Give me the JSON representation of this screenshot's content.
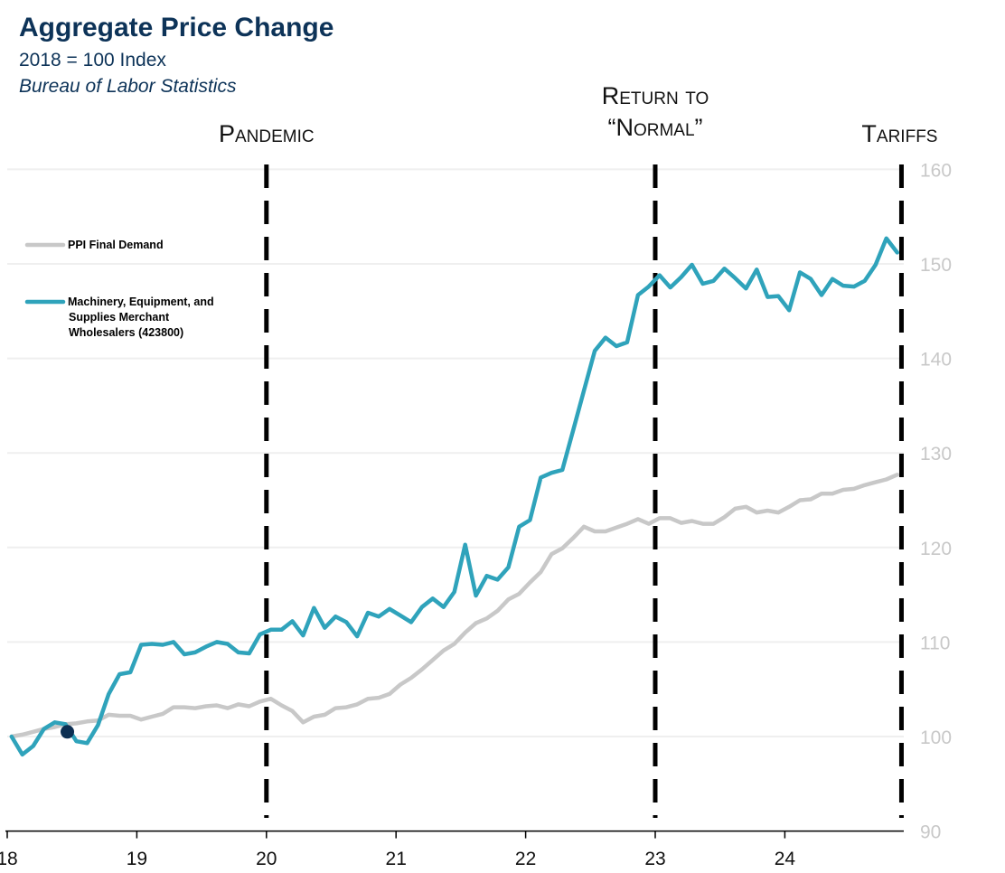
{
  "chart_data": {
    "type": "line",
    "title": "Aggregate Price Change",
    "subtitle": "2018 = 100 Index",
    "source": "Bureau of Labor Statistics",
    "x_start": "2018-01",
    "frequency": "monthly",
    "x_tick_labels": [
      "18",
      "19",
      "20",
      "21",
      "22",
      "23",
      "24"
    ],
    "y_tick_labels": [
      "90",
      "100",
      "110",
      "120",
      "130",
      "140",
      "150",
      "160"
    ],
    "ylim": [
      90,
      160
    ],
    "y_axis_side": "right",
    "grid": "horizontal",
    "legend_position": "left",
    "series": [
      {
        "name": "PPI Final Demand",
        "color": "#c8c8c8",
        "values": [
          100.0,
          100.2,
          100.5,
          100.8,
          101.0,
          101.3,
          101.4,
          101.6,
          101.7,
          102.3,
          102.2,
          102.2,
          101.8,
          102.1,
          102.4,
          103.1,
          103.1,
          103.0,
          103.2,
          103.3,
          103.0,
          103.4,
          103.2,
          103.7,
          104.0,
          103.3,
          102.7,
          101.5,
          102.1,
          102.3,
          103.0,
          103.1,
          103.4,
          104.0,
          104.1,
          104.5,
          105.5,
          106.2,
          107.1,
          108.1,
          109.1,
          109.8,
          111.0,
          112.0,
          112.5,
          113.3,
          114.5,
          115.1,
          116.3,
          117.4,
          119.3,
          119.9,
          121.0,
          122.2,
          121.7,
          121.7,
          122.1,
          122.5,
          123.0,
          122.5,
          123.1,
          123.1,
          122.6,
          122.8,
          122.5,
          122.5,
          123.2,
          124.1,
          124.3,
          123.7,
          123.9,
          123.7,
          124.3,
          125.0,
          125.1,
          125.7,
          125.7,
          126.1,
          126.2,
          126.6,
          126.9,
          127.2,
          127.7
        ]
      },
      {
        "name": "Machinery, Equipment, and Supplies Merchant Wholesalers (423800)",
        "name_lines": [
          "Machinery, Equipment, and",
          "Supplies Merchant",
          "Wholesalers (423800)"
        ],
        "color": "#2fa3bb",
        "values": [
          100.0,
          98.1,
          99.0,
          100.8,
          101.5,
          101.3,
          99.5,
          99.3,
          101.2,
          104.5,
          106.6,
          106.8,
          109.7,
          109.8,
          109.7,
          110.0,
          108.7,
          108.9,
          109.5,
          110.0,
          109.8,
          108.9,
          108.8,
          110.8,
          111.3,
          111.3,
          112.2,
          110.7,
          113.6,
          111.5,
          112.7,
          112.1,
          110.6,
          113.1,
          112.7,
          113.5,
          112.8,
          112.1,
          113.7,
          114.6,
          113.7,
          115.3,
          120.3,
          114.9,
          117.0,
          116.6,
          117.9,
          122.2,
          122.9,
          127.4,
          127.9,
          128.2,
          132.4,
          136.6,
          140.8,
          142.2,
          141.3,
          141.7,
          146.7,
          147.6,
          148.8,
          147.5,
          148.6,
          149.9,
          147.9,
          148.2,
          149.5,
          148.5,
          147.4,
          149.4,
          146.5,
          146.6,
          145.1,
          149.1,
          148.4,
          146.7,
          148.4,
          147.7,
          147.6,
          148.2,
          149.9,
          152.7,
          151.2
        ]
      }
    ],
    "marker": {
      "month_index": 5,
      "value": 100.5,
      "color": "#0d2f52"
    },
    "annotations": [
      {
        "lines": [
          "Pandemic"
        ],
        "year": 2020.0
      },
      {
        "lines": [
          "Return to",
          "“Normal”"
        ],
        "year": 2023.0
      },
      {
        "lines": [
          "Tariffs"
        ],
        "year": 2024.9
      }
    ]
  }
}
